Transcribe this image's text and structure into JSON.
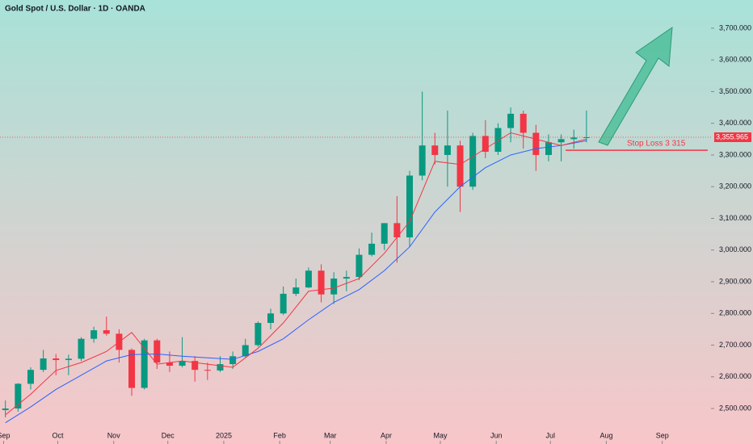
{
  "chart_data": {
    "type": "candlestick",
    "title": "Gold Spot / U.S. Dollar · 1D · OANDA",
    "xlim": [
      -2,
      392
    ],
    "ylim": [
      2388,
      3789
    ],
    "grid": false,
    "xticks": [
      {
        "value": 0,
        "label": "Sep"
      },
      {
        "value": 30,
        "label": "Oct"
      },
      {
        "value": 61,
        "label": "Nov"
      },
      {
        "value": 91,
        "label": "Dec"
      },
      {
        "value": 122,
        "label": "2025"
      },
      {
        "value": 153,
        "label": "Feb"
      },
      {
        "value": 181,
        "label": "Mar"
      },
      {
        "value": 212,
        "label": "Apr"
      },
      {
        "value": 242,
        "label": "May"
      },
      {
        "value": 273,
        "label": "Jun"
      },
      {
        "value": 303,
        "label": "Jul"
      },
      {
        "value": 334,
        "label": "Aug"
      },
      {
        "value": 365,
        "label": "Sep"
      }
    ],
    "yticks": [
      {
        "value": 2500,
        "label": "2,500.000"
      },
      {
        "value": 2600,
        "label": "2,600.000"
      },
      {
        "value": 2700,
        "label": "2,700.000"
      },
      {
        "value": 2800,
        "label": "2,800.000"
      },
      {
        "value": 2900,
        "label": "2,900.000"
      },
      {
        "value": 3000,
        "label": "3,000.000"
      },
      {
        "value": 3100,
        "label": "3,100.000"
      },
      {
        "value": 3200,
        "label": "3,200.000"
      },
      {
        "value": 3300,
        "label": "3,300.000"
      },
      {
        "value": 3400,
        "label": "3,400.000"
      },
      {
        "value": 3500,
        "label": "3,500.000"
      },
      {
        "value": 3600,
        "label": "3,600.000"
      },
      {
        "value": 3700,
        "label": "3,700.000"
      }
    ],
    "up_color": "#089981",
    "down_color": "#f23645",
    "candles": {
      "x": [
        1,
        8,
        15,
        22,
        29,
        36,
        43,
        50,
        57,
        64,
        71,
        78,
        85,
        92,
        99,
        106,
        113,
        120,
        127,
        134,
        141,
        148,
        155,
        162,
        169,
        176,
        183,
        190,
        197,
        204,
        211,
        218,
        225,
        232,
        239,
        246,
        253,
        260,
        267,
        274,
        281,
        288,
        295,
        302,
        309,
        316,
        323
      ],
      "open": [
        2495,
        2500,
        2578,
        2622,
        2658,
        2653,
        2657,
        2720,
        2747,
        2736,
        2685,
        2565,
        2715,
        2645,
        2635,
        2650,
        2622,
        2620,
        2640,
        2665,
        2700,
        2770,
        2800,
        2862,
        2882,
        2935,
        2860,
        2910,
        2915,
        2985,
        3020,
        3085,
        3040,
        3235,
        3330,
        3300,
        3330,
        3200,
        3360,
        3310,
        3385,
        3430,
        3370,
        3300,
        3340,
        3350,
        3355
      ],
      "high": [
        2525,
        2580,
        2630,
        2685,
        2672,
        2670,
        2725,
        2758,
        2790,
        2750,
        2690,
        2720,
        2720,
        2680,
        2725,
        2665,
        2645,
        2665,
        2680,
        2720,
        2775,
        2815,
        2885,
        2910,
        2945,
        2955,
        2930,
        2935,
        3005,
        3055,
        3085,
        3170,
        3250,
        3500,
        3370,
        3440,
        3345,
        3370,
        3410,
        3400,
        3450,
        3440,
        3395,
        3365,
        3365,
        3380,
        3440
      ],
      "low": [
        2472,
        2490,
        2560,
        2615,
        2605,
        2605,
        2650,
        2708,
        2730,
        2645,
        2540,
        2560,
        2625,
        2615,
        2630,
        2585,
        2590,
        2615,
        2625,
        2660,
        2695,
        2750,
        2795,
        2855,
        2880,
        2835,
        2830,
        2870,
        2905,
        2980,
        3000,
        2960,
        3010,
        3220,
        3270,
        3200,
        3120,
        3190,
        3290,
        3300,
        3340,
        3320,
        3250,
        3280,
        3280,
        3320,
        3340
      ],
      "close": [
        2500,
        2578,
        2622,
        2658,
        2653,
        2657,
        2720,
        2747,
        2736,
        2685,
        2565,
        2715,
        2645,
        2635,
        2650,
        2622,
        2620,
        2640,
        2665,
        2700,
        2770,
        2800,
        2862,
        2882,
        2935,
        2860,
        2910,
        2915,
        2985,
        3020,
        3085,
        3040,
        3235,
        3330,
        3300,
        3330,
        3200,
        3360,
        3310,
        3385,
        3430,
        3370,
        3300,
        3340,
        3350,
        3355,
        3356
      ]
    },
    "lines": [
      {
        "color": "#2962ff",
        "x": [
          1,
          15,
          29,
          43,
          57,
          71,
          85,
          99,
          113,
          127,
          141,
          155,
          169,
          183,
          197,
          211,
          225,
          239,
          253,
          267,
          281,
          295,
          309,
          323
        ],
        "values": [
          2455,
          2505,
          2560,
          2605,
          2650,
          2670,
          2672,
          2665,
          2660,
          2655,
          2680,
          2720,
          2780,
          2835,
          2875,
          2935,
          3010,
          3120,
          3200,
          3260,
          3300,
          3320,
          3330,
          3345
        ]
      },
      {
        "color": "#f23645",
        "x": [
          1,
          15,
          29,
          43,
          57,
          71,
          85,
          99,
          113,
          127,
          141,
          155,
          169,
          183,
          197,
          211,
          225,
          239,
          253,
          267,
          281,
          295,
          309,
          323
        ],
        "values": [
          2480,
          2545,
          2620,
          2645,
          2680,
          2740,
          2640,
          2650,
          2640,
          2630,
          2690,
          2770,
          2870,
          2880,
          2910,
          2990,
          3090,
          3280,
          3270,
          3320,
          3370,
          3350,
          3330,
          3350
        ]
      }
    ],
    "price_line": {
      "value": 3355.965,
      "label": "3,355.965"
    },
    "stop_loss": {
      "value": 3315,
      "label": "Stop Loss 3 315"
    }
  }
}
